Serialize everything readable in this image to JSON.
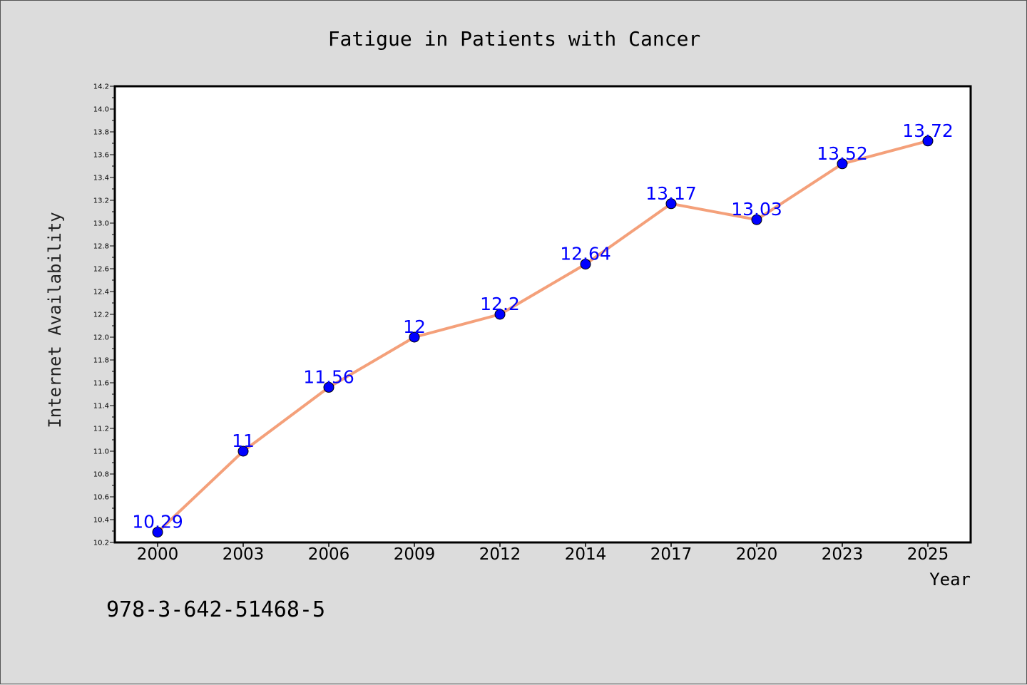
{
  "chart_data": {
    "type": "line",
    "title": "Fatigue in Patients with Cancer",
    "xlabel": "Year",
    "ylabel": "Internet Availability",
    "categories": [
      "2000",
      "2003",
      "2006",
      "2009",
      "2012",
      "2014",
      "2017",
      "2020",
      "2023",
      "2025"
    ],
    "series": [
      {
        "values": [
          10.29,
          11,
          11.56,
          12,
          12.2,
          12.64,
          13.17,
          13.03,
          13.52,
          13.72
        ],
        "data_labels": [
          "10.29",
          "11",
          "11.56",
          "12",
          "12.2",
          "12.64",
          "13.17",
          "13.03",
          "13.52",
          "13.72"
        ],
        "line_color": "#f4a07a",
        "marker_color": "#0000ff"
      }
    ],
    "ylim": [
      10.2,
      14.2
    ],
    "yticks": [
      "10.2",
      "10.4",
      "10.6",
      "10.8",
      "11.0",
      "11.2",
      "11.4",
      "11.6",
      "11.8",
      "12.0",
      "12.2",
      "12.4",
      "12.6",
      "12.8",
      "13.0",
      "13.2",
      "13.4",
      "13.6",
      "13.8",
      "14.0",
      "14.2"
    ],
    "grid": false,
    "legend": "none"
  },
  "footer": {
    "isbn": "978-3-642-51468-5"
  },
  "colors": {
    "background": "#dcdcdc",
    "plot_area": "#ffffff",
    "line": "#f4a07a",
    "marker": "#0000ff",
    "data_label": "#0000ff"
  }
}
